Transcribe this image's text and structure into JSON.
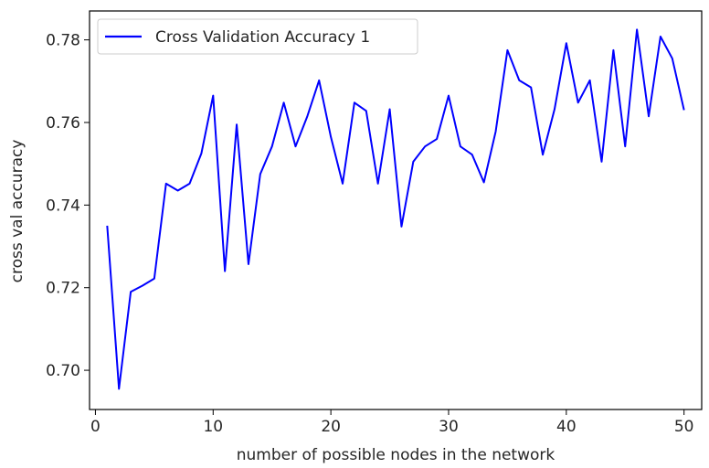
{
  "chart_data": {
    "type": "line",
    "title": "",
    "xlabel": "number of possible nodes in the network",
    "ylabel": "cross val accuracy",
    "xlim": [
      -0.5,
      51.5
    ],
    "ylim": [
      0.6905,
      0.787
    ],
    "xticks": [
      0,
      10,
      20,
      30,
      40,
      50
    ],
    "xtick_labels": [
      "0",
      "10",
      "20",
      "30",
      "40",
      "50"
    ],
    "yticks": [
      0.7,
      0.72,
      0.74,
      0.76,
      0.78
    ],
    "ytick_labels": [
      "0.70",
      "0.72",
      "0.74",
      "0.76",
      "0.78"
    ],
    "grid": false,
    "legend_position": "top-left",
    "series": [
      {
        "name": "Cross Validation Accuracy 1",
        "color": "#0000ff",
        "x": [
          1,
          2,
          3,
          4,
          5,
          6,
          7,
          8,
          9,
          10,
          11,
          12,
          13,
          14,
          15,
          16,
          17,
          18,
          19,
          20,
          21,
          22,
          23,
          24,
          25,
          26,
          27,
          28,
          29,
          30,
          31,
          32,
          33,
          34,
          35,
          36,
          37,
          38,
          39,
          40,
          41,
          42,
          43,
          44,
          45,
          46,
          47,
          48,
          49,
          50
        ],
        "y": [
          0.735,
          0.6955,
          0.719,
          0.7205,
          0.7222,
          0.7452,
          0.7435,
          0.7452,
          0.7525,
          0.7665,
          0.724,
          0.7595,
          0.7257,
          0.7475,
          0.7542,
          0.7648,
          0.7542,
          0.7615,
          0.7702,
          0.7565,
          0.7452,
          0.7648,
          0.7628,
          0.7452,
          0.7632,
          0.7348,
          0.7505,
          0.7542,
          0.756,
          0.7665,
          0.7542,
          0.7522,
          0.7455,
          0.7578,
          0.7775,
          0.7702,
          0.7685,
          0.7522,
          0.7632,
          0.7792,
          0.7648,
          0.7702,
          0.7505,
          0.7775,
          0.7542,
          0.7825,
          0.7615,
          0.7808,
          0.7755,
          0.763
        ]
      }
    ]
  }
}
